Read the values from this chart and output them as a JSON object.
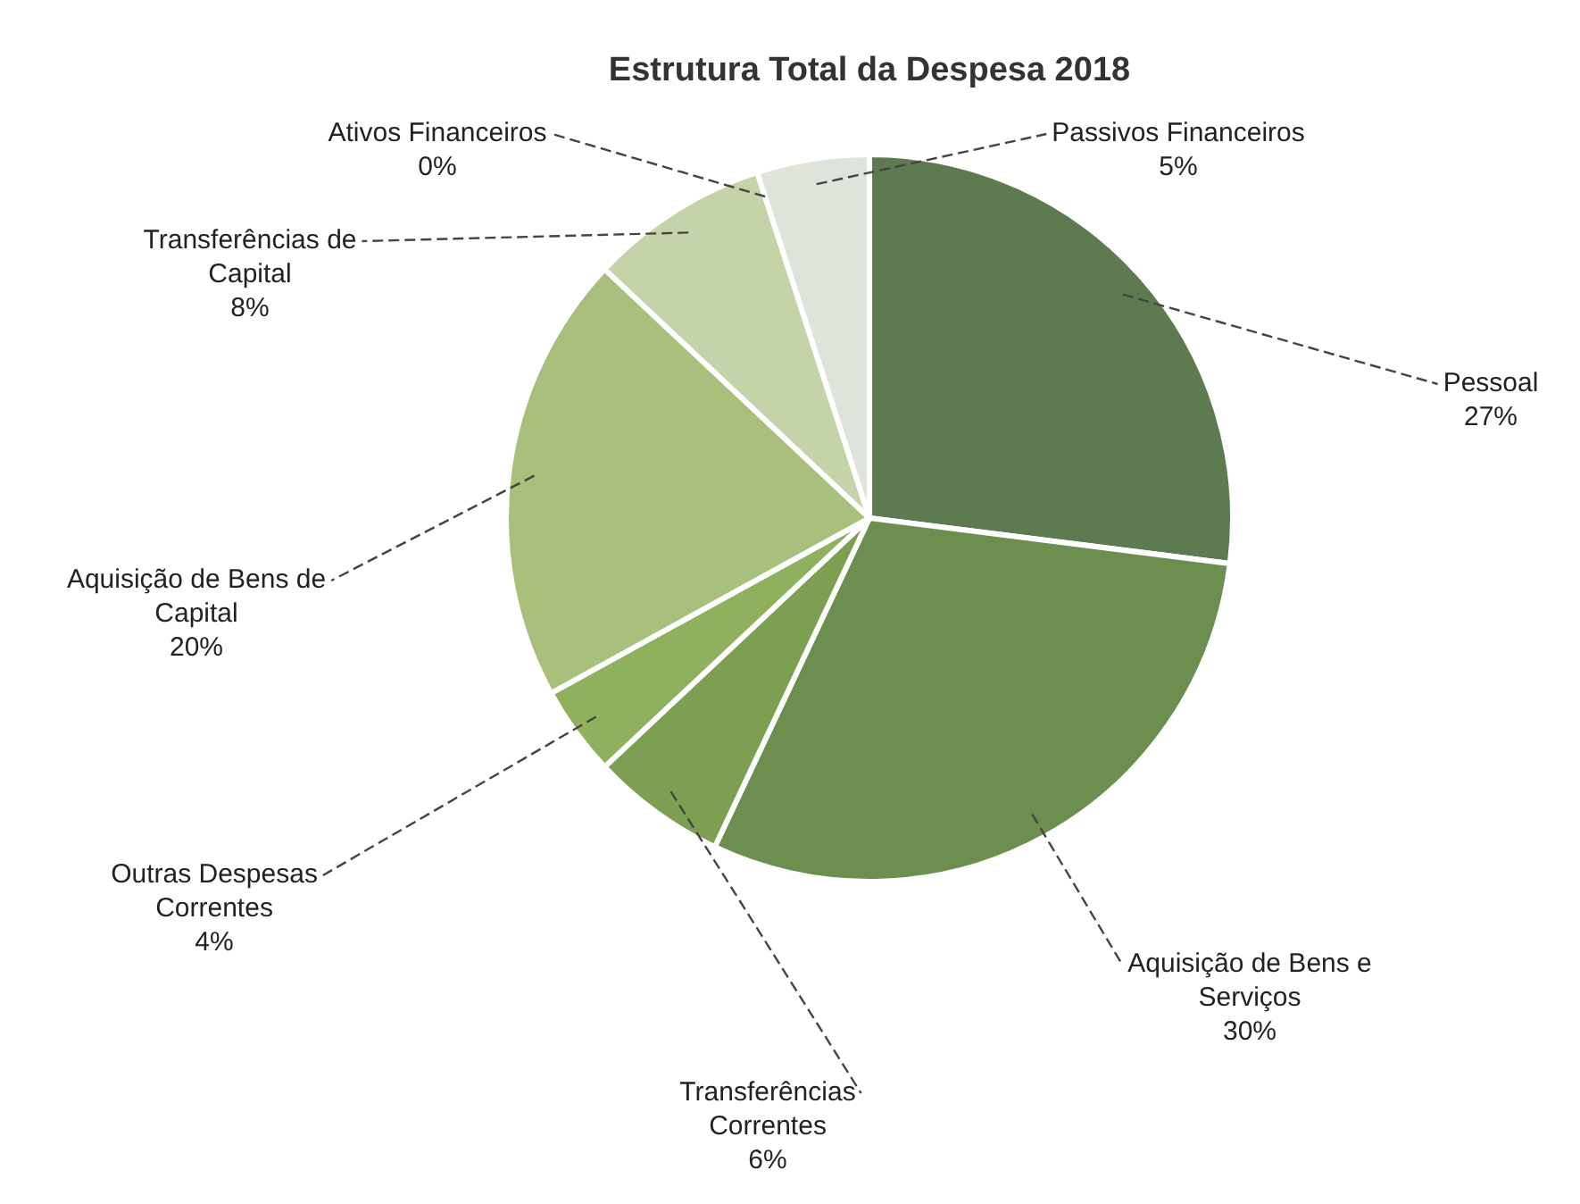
{
  "chart_data": {
    "type": "pie",
    "title": "Estrutura Total da Despesa 2018",
    "categories": [
      "Pessoal",
      "Aquisição de Bens e Serviços",
      "Transferências Correntes",
      "Outras Despesas Correntes",
      "Aquisição de Bens de Capital",
      "Transferências de Capital",
      "Ativos Financeiros",
      "Passivos Financeiros"
    ],
    "values": [
      27,
      30,
      6,
      4,
      20,
      8,
      0,
      5
    ],
    "value_labels": [
      "27%",
      "30%",
      "6%",
      "4%",
      "20%",
      "8%",
      "0%",
      "5%"
    ],
    "colors": [
      "#5d7a50",
      "#6c8f4f",
      "#7c9f52",
      "#8fb05c",
      "#a9c07c",
      "#c5d4a8",
      "#e3ead5",
      "#dfe4da"
    ],
    "legend": false
  }
}
